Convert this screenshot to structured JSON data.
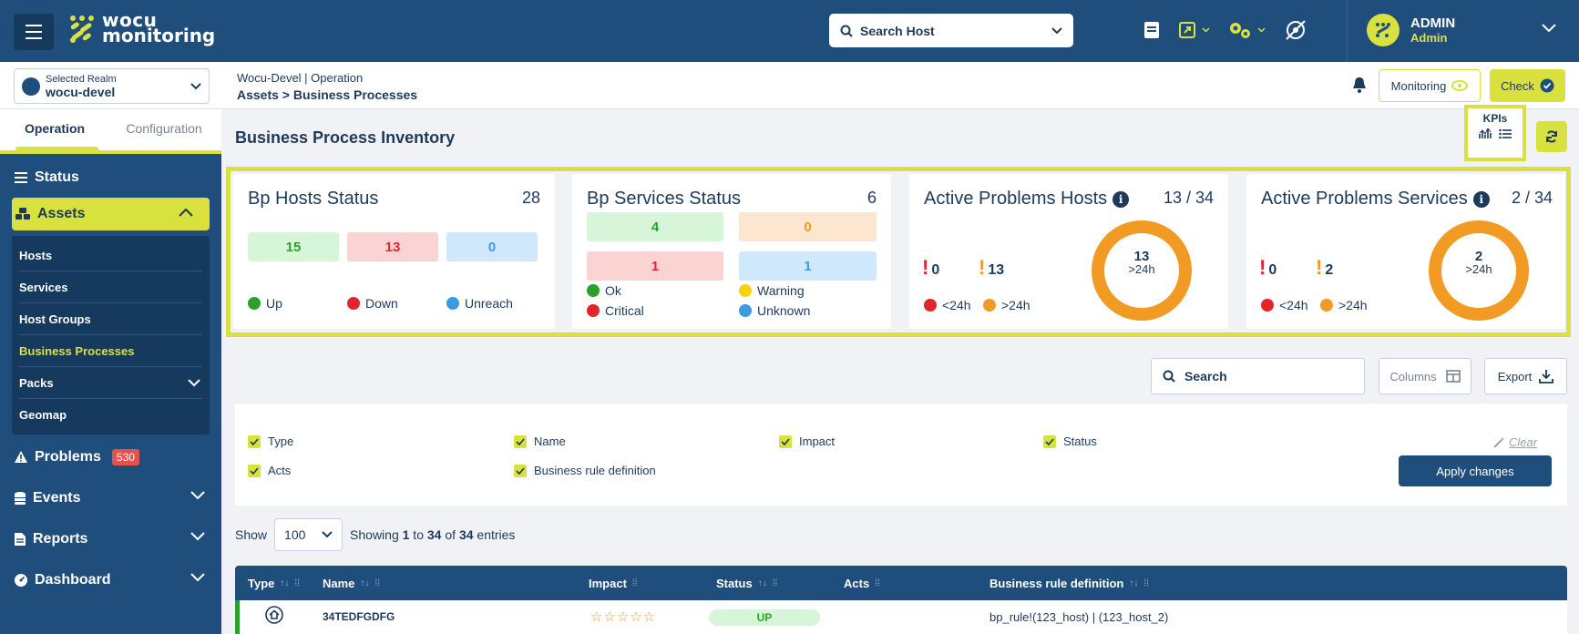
{
  "topbar": {
    "logo_line1": "wocu",
    "logo_line2": "monitoring",
    "search_placeholder": "Search Host",
    "user_name": "ADMIN",
    "user_role": "Admin"
  },
  "subheader": {
    "realm_label": "Selected Realm",
    "realm_value": "wocu-devel",
    "crumb_line1": "Wocu-Devel | Operation",
    "crumb_line2": "Assets > Business Processes",
    "monitoring_label": "Monitoring",
    "check_label": "Check"
  },
  "sidebar": {
    "tabs": [
      "Operation",
      "Configuration"
    ],
    "status": "Status",
    "assets": "Assets",
    "asset_items": [
      "Hosts",
      "Services",
      "Host Groups",
      "Business Processes",
      "Packs",
      "Geomap"
    ],
    "problems": "Problems",
    "problems_count": "530",
    "events": "Events",
    "reports": "Reports",
    "dashboard": "Dashboard"
  },
  "main": {
    "title": "Business Process Inventory",
    "kpis_label": "KPIs"
  },
  "kpi": {
    "hosts": {
      "title": "Bp Hosts Status",
      "count": "28",
      "up": "15",
      "down": "13",
      "unreach": "0",
      "legend": [
        "Up",
        "Down",
        "Unreach"
      ]
    },
    "services": {
      "title": "Bp Services Status",
      "count": "6",
      "ok": "4",
      "warning": "0",
      "critical": "1",
      "unknown": "1",
      "legend": [
        "Ok",
        "Warning",
        "Critical",
        "Unknown"
      ]
    },
    "problems_hosts": {
      "title": "Active Problems Hosts",
      "count": "13 / 34",
      "lt24": "0",
      "gt24": "13",
      "donut_value": "13",
      "donut_sub": ">24h",
      "legend": [
        "<24h",
        ">24h"
      ]
    },
    "problems_services": {
      "title": "Active Problems Services",
      "count": "2 / 34",
      "lt24": "0",
      "gt24": "2",
      "donut_value": "2",
      "donut_sub": ">24h",
      "legend": [
        "<24h",
        ">24h"
      ]
    }
  },
  "toolbar": {
    "search_label": "Search",
    "columns_label": "Columns",
    "export_label": "Export"
  },
  "columns": {
    "options": [
      "Type",
      "Name",
      "Impact",
      "Status",
      "Acts",
      "Business rule definition"
    ],
    "clear_label": "Clear",
    "apply_label": "Apply changes"
  },
  "listing": {
    "show_label": "Show",
    "page_size": "100",
    "showing_prefix": "Showing ",
    "showing_from": "1",
    "showing_mid": " to ",
    "showing_to": "34",
    "showing_of": " of ",
    "showing_total": "34",
    "showing_suffix": " entries"
  },
  "table": {
    "headers": [
      "Type",
      "Name",
      "Impact",
      "Status",
      "Acts",
      "Business rule definition"
    ],
    "rows": [
      {
        "name": "34TEDFGDFG",
        "impact_stars": "☆☆☆☆☆",
        "status": "UP",
        "rule": "bp_rule!(123_host) | (123_host_2)"
      }
    ]
  },
  "colors": {
    "primary": "#1f4e7d",
    "accent": "#d8e13d",
    "up": "#2ca02c",
    "down": "#e0262b",
    "unreach": "#3a9ae2",
    "warning": "#f29b24"
  }
}
